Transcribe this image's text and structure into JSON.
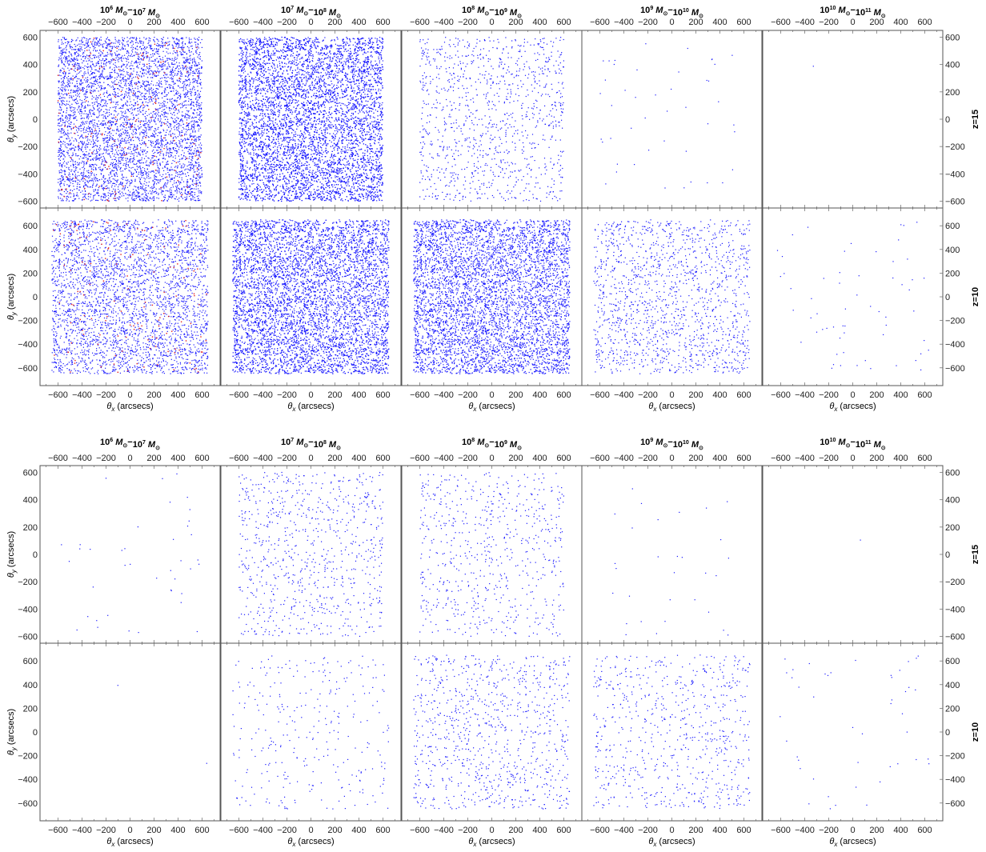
{
  "figure": {
    "x_axis_label": "(arcsecs)",
    "y_axis_label": "(arcsecs)",
    "x_axis_symbol": "θ",
    "x_axis_symbol_sub": "x",
    "y_axis_symbol": "θ",
    "y_axis_symbol_sub": "y",
    "column_titles": [
      {
        "lo_exp": "6",
        "hi_exp": "7"
      },
      {
        "lo_exp": "7",
        "hi_exp": "8"
      },
      {
        "lo_exp": "8",
        "hi_exp": "9"
      },
      {
        "lo_exp": "9",
        "hi_exp": "10"
      },
      {
        "lo_exp": "10",
        "hi_exp": "11"
      }
    ],
    "row_labels": [
      "z=15",
      "z=10"
    ],
    "colors": {
      "primary_points": "#1a1aff",
      "secondary_points": "#e02020",
      "frame": "#555555"
    }
  },
  "chart_data": [
    {
      "type": "scatter",
      "panel_group": "top",
      "x_ticks": [
        -600,
        -400,
        -200,
        0,
        200,
        400,
        600
      ],
      "rows": [
        {
          "label": "z=15",
          "ylim": [
            -650,
            650
          ],
          "y_ticks": [
            -600,
            -400,
            -200,
            0,
            200,
            400,
            600
          ],
          "point_extent": 600,
          "approx_point_counts": [
            5000,
            9000,
            1100,
            45,
            1
          ],
          "red_point_counts": [
            160,
            0,
            0,
            0,
            0
          ]
        },
        {
          "label": "z=10",
          "ylim": [
            -750,
            750
          ],
          "y_ticks": [
            -600,
            -400,
            -200,
            0,
            200,
            400,
            600
          ],
          "point_extent": 650,
          "approx_point_counts": [
            3400,
            8000,
            6500,
            1500,
            60
          ],
          "red_point_counts": [
            140,
            0,
            0,
            0,
            0
          ]
        }
      ],
      "xlim": [
        -750,
        750
      ]
    },
    {
      "type": "scatter",
      "panel_group": "bottom",
      "x_ticks": [
        -600,
        -400,
        -200,
        0,
        200,
        400,
        600
      ],
      "rows": [
        {
          "label": "z=15",
          "ylim": [
            -650,
            650
          ],
          "y_ticks": [
            -600,
            -400,
            -200,
            0,
            200,
            400,
            600
          ],
          "point_extent": 600,
          "approx_point_counts": [
            40,
            800,
            650,
            30,
            1
          ],
          "red_point_counts": [
            0,
            0,
            0,
            0,
            0
          ]
        },
        {
          "label": "z=10",
          "ylim": [
            -750,
            750
          ],
          "y_ticks": [
            -600,
            -400,
            -200,
            0,
            200,
            400,
            600
          ],
          "point_extent": 650,
          "approx_point_counts": [
            2,
            300,
            900,
            700,
            45
          ],
          "red_point_counts": [
            0,
            0,
            0,
            0,
            0
          ]
        }
      ],
      "xlim": [
        -750,
        750
      ]
    }
  ]
}
